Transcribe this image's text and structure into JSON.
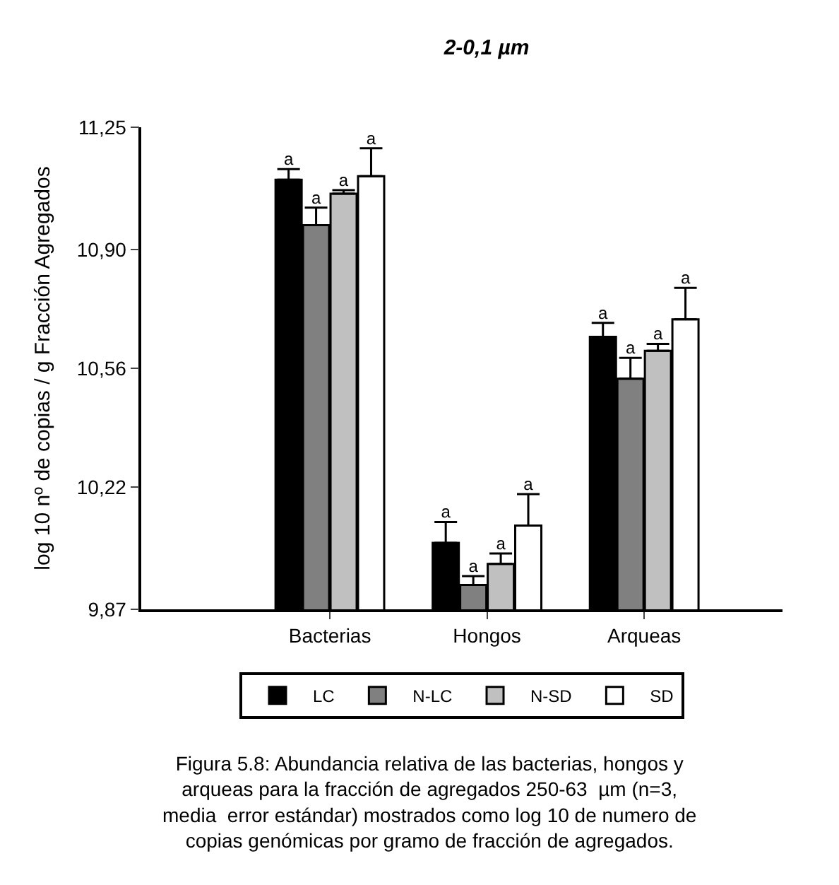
{
  "chart_data": {
    "type": "bar",
    "title": "2-0,1 µm",
    "ylabel": "log 10 nº de copias / g Fracción Agregados",
    "categories": [
      "Bacterias",
      "Hongos",
      "Arqueas"
    ],
    "series": [
      {
        "name": "LC",
        "color": "#000000",
        "values": [
          11.1,
          10.06,
          10.65
        ],
        "errors": [
          [
            11.1,
            11.13
          ],
          [
            10.06,
            10.12
          ],
          [
            10.65,
            10.69
          ]
        ],
        "value_labels": [
          "a",
          "a",
          "a"
        ]
      },
      {
        "name": "N-LC",
        "color": "#808080",
        "values": [
          10.97,
          9.94,
          10.53
        ],
        "errors": [
          [
            10.97,
            11.02
          ],
          [
            9.94,
            9.965
          ],
          [
            10.53,
            10.59
          ]
        ],
        "value_labels": [
          "a",
          "a",
          "a"
        ]
      },
      {
        "name": "N-SD",
        "color": "#c0c0c0",
        "values": [
          11.06,
          10.0,
          10.61
        ],
        "errors": [
          [
            11.06,
            11.07
          ],
          [
            10.0,
            10.03
          ],
          [
            10.61,
            10.63
          ]
        ],
        "value_labels": [
          "a",
          "a",
          "a"
        ]
      },
      {
        "name": "SD",
        "color": "#ffffff",
        "values": [
          11.11,
          10.11,
          10.7
        ],
        "errors": [
          [
            11.11,
            11.19
          ],
          [
            10.11,
            10.2
          ],
          [
            10.7,
            10.79
          ]
        ],
        "value_labels": [
          "a",
          "a",
          "a"
        ]
      }
    ],
    "ylim": [
      9.87,
      11.25
    ],
    "yticks": [
      {
        "value": 9.87,
        "label": "9,87"
      },
      {
        "value": 10.22,
        "label": "10,22"
      },
      {
        "value": 10.56,
        "label": "10,56"
      },
      {
        "value": 10.9,
        "label": "10,90"
      },
      {
        "value": 11.25,
        "label": "11,25"
      }
    ],
    "legend": "bottom",
    "annotations": [
      "Figura 5.8: Abundancia relativa de las bacterias, hongos y\narqueas para la fracción de agregados 250-63  µm (n=3,\nmedia  error estándar) mostrados como log 10 de numero de\ncopias genómicas por gramo de fracción de agregados."
    ]
  }
}
